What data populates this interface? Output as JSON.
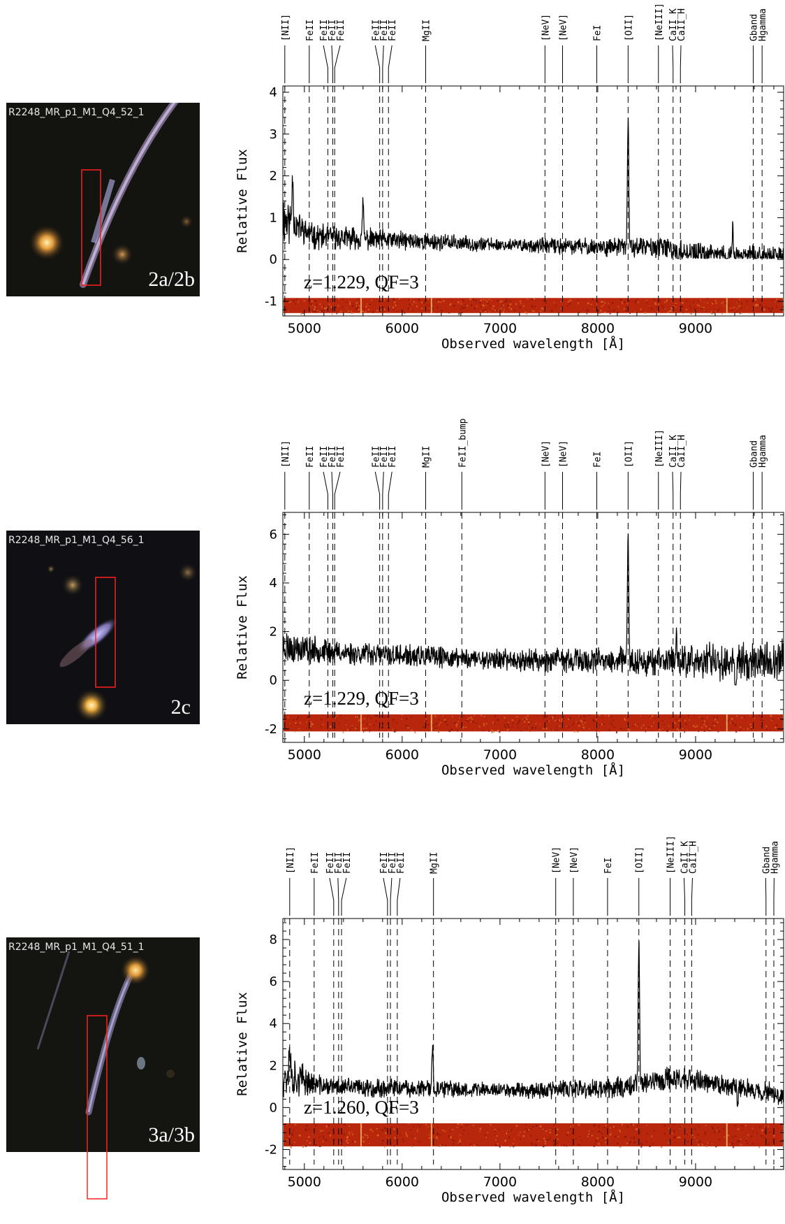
{
  "panels": [
    {
      "thumbnail": {
        "id_label": "R2248_MR_p1_M1_Q4_52_1",
        "image_label": "2a/2b",
        "arc": "arc-long"
      },
      "chart_data": {
        "type": "line",
        "xlabel": "Observed wavelength [Å]",
        "ylabel": "Relative Flux",
        "xlim": [
          4780,
          9900
        ],
        "ylim": [
          -1.35,
          4.15
        ],
        "xticks": [
          5000,
          6000,
          7000,
          8000,
          9000
        ],
        "yticks": [
          -1,
          0,
          1,
          2,
          3,
          4
        ],
        "annotation": "z=1.229, QF=3",
        "lines": [
          {
            "label": "[NII]",
            "x": 4800
          },
          {
            "label": "FeII",
            "x": 5050
          },
          {
            "label": "FeII",
            "x": 5240
          },
          {
            "label": "FeII",
            "x": 5290
          },
          {
            "label": "FeII",
            "x": 5310
          },
          {
            "label": "FeII",
            "x": 5770
          },
          {
            "label": "FeII",
            "x": 5800
          },
          {
            "label": "FeII",
            "x": 5860
          },
          {
            "label": "MgII",
            "x": 6240
          },
          {
            "label": "[NeV]",
            "x": 7460
          },
          {
            "label": "[NeV]",
            "x": 7640
          },
          {
            "label": "FeI",
            "x": 7990
          },
          {
            "label": "[OII]",
            "x": 8310
          },
          {
            "label": "[NeIII]",
            "x": 8620
          },
          {
            "label": "CaII_K",
            "x": 8770
          },
          {
            "label": "CaII_H",
            "x": 8845
          },
          {
            "label": "Gband",
            "x": 9590
          },
          {
            "label": "Hgamma",
            "x": 9680
          }
        ],
        "spectrum": {
          "baseline": [
            [
              4780,
              1.0
            ],
            [
              5100,
              0.55
            ],
            [
              6000,
              0.45
            ],
            [
              7000,
              0.35
            ],
            [
              8000,
              0.3
            ],
            [
              8600,
              0.3
            ],
            [
              9000,
              0.15
            ],
            [
              9500,
              0.1
            ],
            [
              9900,
              0.1
            ]
          ],
          "noise": [
            [
              4780,
              0.55
            ],
            [
              5000,
              0.25
            ],
            [
              7000,
              0.13
            ],
            [
              8600,
              0.2
            ],
            [
              9000,
              0.2
            ],
            [
              9900,
              0.18
            ]
          ],
          "features": [
            {
              "x": 8310,
              "height": 3.05,
              "width": 10
            },
            {
              "x": 4880,
              "height": 1.2,
              "width": 10
            },
            {
              "x": 5600,
              "height": 0.95,
              "width": 8
            },
            {
              "x": 9320,
              "height": -1.0,
              "width": 10
            },
            {
              "x": 8820,
              "height": -0.75,
              "width": 8
            },
            {
              "x": 9380,
              "height": 0.7,
              "width": 8
            }
          ],
          "seed": 11
        },
        "band_2d": {
          "y_center": -1.1,
          "half_height": 0.18
        }
      }
    },
    {
      "thumbnail": {
        "id_label": "R2248_MR_p1_M1_Q4_56_1",
        "image_label": "2c",
        "arc": "arc-short"
      },
      "chart_data": {
        "type": "line",
        "xlabel": "Observed wavelength [Å]",
        "ylabel": "Relative Flux",
        "xlim": [
          4780,
          9900
        ],
        "ylim": [
          -2.55,
          6.9
        ],
        "xticks": [
          5000,
          6000,
          7000,
          8000,
          9000
        ],
        "yticks": [
          -2,
          0,
          2,
          4,
          6
        ],
        "annotation": "z=1.229, QF=3",
        "lines": [
          {
            "label": "[NII]",
            "x": 4800
          },
          {
            "label": "FeII",
            "x": 5050
          },
          {
            "label": "FeII",
            "x": 5240
          },
          {
            "label": "FeII",
            "x": 5290
          },
          {
            "label": "FeII",
            "x": 5310
          },
          {
            "label": "FeII",
            "x": 5770
          },
          {
            "label": "FeII",
            "x": 5800
          },
          {
            "label": "FeII",
            "x": 5860
          },
          {
            "label": "MgII",
            "x": 6240
          },
          {
            "label": "FeII_bump",
            "x": 6610
          },
          {
            "label": "[NeV]",
            "x": 7460
          },
          {
            "label": "[NeV]",
            "x": 7640
          },
          {
            "label": "FeI",
            "x": 7990
          },
          {
            "label": "[OII]",
            "x": 8310
          },
          {
            "label": "[NeIII]",
            "x": 8620
          },
          {
            "label": "CaII_K",
            "x": 8770
          },
          {
            "label": "CaII_H",
            "x": 8845
          },
          {
            "label": "Gband",
            "x": 9590
          },
          {
            "label": "Hgamma",
            "x": 9680
          }
        ],
        "spectrum": {
          "baseline": [
            [
              4780,
              1.4
            ],
            [
              5200,
              1.2
            ],
            [
              6000,
              1.0
            ],
            [
              7000,
              0.85
            ],
            [
              8000,
              0.8
            ],
            [
              9000,
              0.8
            ],
            [
              9900,
              0.8
            ]
          ],
          "noise": [
            [
              4780,
              0.6
            ],
            [
              5200,
              0.4
            ],
            [
              7000,
              0.35
            ],
            [
              8600,
              0.5
            ],
            [
              9000,
              0.6
            ],
            [
              9900,
              0.7
            ]
          ],
          "features": [
            {
              "x": 8310,
              "height": 5.0,
              "width": 10
            },
            {
              "x": 9410,
              "height": -1.8,
              "width": 10
            },
            {
              "x": 8805,
              "height": 1.4,
              "width": 8
            }
          ],
          "seed": 23
        },
        "band_2d": {
          "y_center": -1.75,
          "half_height": 0.35
        }
      }
    },
    {
      "thumbnail": {
        "id_label": "R2248_MR_p1_M1_Q4_51_1",
        "image_label": "3a/3b",
        "arc": "arc-long-lower"
      },
      "chart_data": {
        "type": "line",
        "xlabel": "Observed wavelength [Å]",
        "ylabel": "Relative Flux",
        "xlim": [
          4780,
          9900
        ],
        "ylim": [
          -2.95,
          9.0
        ],
        "xticks": [
          5000,
          6000,
          7000,
          8000,
          9000
        ],
        "yticks": [
          -2,
          0,
          2,
          4,
          6,
          8
        ],
        "annotation": "z=1.260, QF=3",
        "lines": [
          {
            "label": "[NII]",
            "x": 4850
          },
          {
            "label": "FeII",
            "x": 5100
          },
          {
            "label": "FeII",
            "x": 5300
          },
          {
            "label": "FeII",
            "x": 5350
          },
          {
            "label": "FeII",
            "x": 5380
          },
          {
            "label": "FeII",
            "x": 5850
          },
          {
            "label": "FeII",
            "x": 5880
          },
          {
            "label": "FeII",
            "x": 5950
          },
          {
            "label": "MgII",
            "x": 6320
          },
          {
            "label": "[NeV]",
            "x": 7570
          },
          {
            "label": "[NeV]",
            "x": 7750
          },
          {
            "label": "FeI",
            "x": 8100
          },
          {
            "label": "[OII]",
            "x": 8420
          },
          {
            "label": "[NeIII]",
            "x": 8740
          },
          {
            "label": "CaII_K",
            "x": 8890
          },
          {
            "label": "CaII_H",
            "x": 8960
          },
          {
            "label": "Gband",
            "x": 9720
          },
          {
            "label": "Hgamma",
            "x": 9800
          }
        ],
        "spectrum": {
          "baseline": [
            [
              4780,
              1.6
            ],
            [
              5200,
              1.0
            ],
            [
              6000,
              0.9
            ],
            [
              7000,
              0.85
            ],
            [
              8000,
              0.85
            ],
            [
              8800,
              1.4
            ],
            [
              9000,
              1.3
            ],
            [
              9500,
              0.9
            ],
            [
              9900,
              0.6
            ]
          ],
          "noise": [
            [
              4780,
              1.0
            ],
            [
              5100,
              0.4
            ],
            [
              7000,
              0.3
            ],
            [
              8700,
              0.5
            ],
            [
              9000,
              0.4
            ],
            [
              9900,
              0.4
            ]
          ],
          "features": [
            {
              "x": 8420,
              "height": 6.9,
              "width": 10
            },
            {
              "x": 6310,
              "height": 1.9,
              "width": 10
            },
            {
              "x": 4850,
              "height": 1.6,
              "width": 10
            },
            {
              "x": 9430,
              "height": -1.2,
              "width": 8
            }
          ],
          "seed": 37
        },
        "band_2d": {
          "y_center": -1.3,
          "half_height": 0.55
        }
      }
    }
  ]
}
